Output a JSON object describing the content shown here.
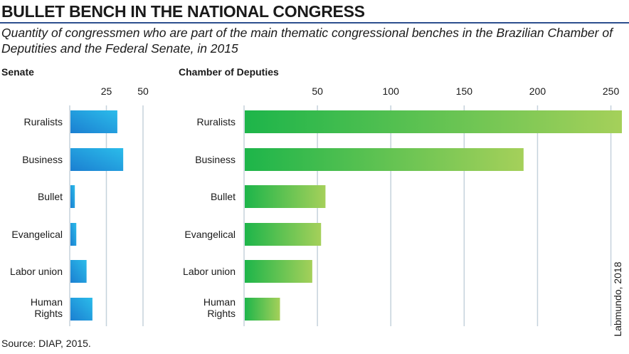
{
  "header": {
    "title": "BULLET BENCH IN THE NATIONAL CONGRESS",
    "subtitle": "Quantity of congressmen who are part of the main thematic congressional benches in the Brazilian Chamber of Deputities and the Federal Senate, in 2015"
  },
  "footer": {
    "source": "Source: DIAP, 2015.",
    "credit": "Labmundo, 2018"
  },
  "colors": {
    "title_rule": "#2d4f8e",
    "senate_bar_start": "#1b7fd1",
    "senate_bar_end": "#2bbcea",
    "chamber_bar_start": "#1db54a",
    "chamber_bar_end": "#a5d05a",
    "gridline": "#c5d2dc"
  },
  "chart_data": [
    {
      "type": "bar",
      "orientation": "horizontal",
      "title": "Senate",
      "categories": [
        "Ruralists",
        "Business",
        "Bullet",
        "Evangelical",
        "Labor union",
        "Human\nRights"
      ],
      "values": [
        32,
        36,
        3,
        4,
        11,
        15
      ],
      "xlim": [
        0,
        50
      ],
      "xticks": [
        25,
        50
      ],
      "grid": true
    },
    {
      "type": "bar",
      "orientation": "horizontal",
      "title": "Chamber of Deputies",
      "categories": [
        "Ruralists",
        "Business",
        "Bullet",
        "Evangelical",
        "Labor union",
        "Human\nRights"
      ],
      "values": [
        257,
        190,
        55,
        52,
        46,
        24
      ],
      "xlim": [
        0,
        257
      ],
      "xticks": [
        50,
        100,
        150,
        200,
        250
      ],
      "grid": true
    }
  ]
}
